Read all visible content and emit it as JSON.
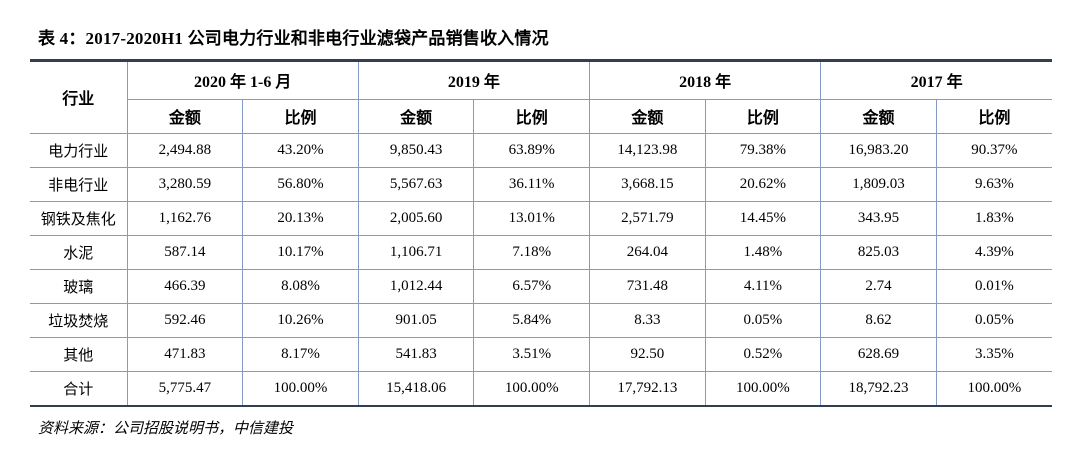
{
  "title": "表 4：2017-2020H1 公司电力行业和非电行业滤袋产品销售收入情况",
  "table": {
    "industry_header": "行业",
    "period_groups": [
      {
        "label": "2020 年 1-6 月"
      },
      {
        "label": "2019 年"
      },
      {
        "label": "2018 年"
      },
      {
        "label": "2017 年"
      }
    ],
    "sub_headers": {
      "amount": "金额",
      "ratio": "比例"
    },
    "rows": [
      {
        "industry": "电力行业",
        "cells": [
          "2,494.88",
          "43.20%",
          "9,850.43",
          "63.89%",
          "14,123.98",
          "79.38%",
          "16,983.20",
          "90.37%"
        ]
      },
      {
        "industry": "非电行业",
        "cells": [
          "3,280.59",
          "56.80%",
          "5,567.63",
          "36.11%",
          "3,668.15",
          "20.62%",
          "1,809.03",
          "9.63%"
        ]
      },
      {
        "industry": "钢铁及焦化",
        "cells": [
          "1,162.76",
          "20.13%",
          "2,005.60",
          "13.01%",
          "2,571.79",
          "14.45%",
          "343.95",
          "1.83%"
        ]
      },
      {
        "industry": "水泥",
        "cells": [
          "587.14",
          "10.17%",
          "1,106.71",
          "7.18%",
          "264.04",
          "1.48%",
          "825.03",
          "4.39%"
        ]
      },
      {
        "industry": "玻璃",
        "cells": [
          "466.39",
          "8.08%",
          "1,012.44",
          "6.57%",
          "731.48",
          "4.11%",
          "2.74",
          "0.01%"
        ]
      },
      {
        "industry": "垃圾焚烧",
        "cells": [
          "592.46",
          "10.26%",
          "901.05",
          "5.84%",
          "8.33",
          "0.05%",
          "8.62",
          "0.05%"
        ]
      },
      {
        "industry": "其他",
        "cells": [
          "471.83",
          "8.17%",
          "541.83",
          "3.51%",
          "92.50",
          "0.52%",
          "628.69",
          "3.35%"
        ]
      },
      {
        "industry": "合计",
        "cells": [
          "5,775.47",
          "100.00%",
          "15,418.06",
          "100.00%",
          "17,792.13",
          "100.00%",
          "18,792.23",
          "100.00%"
        ]
      }
    ]
  },
  "footer": "资料来源：公司招股说明书，中信建投",
  "colors": {
    "inner_border": "#8499c4",
    "heavy_rule": "#333f50"
  }
}
